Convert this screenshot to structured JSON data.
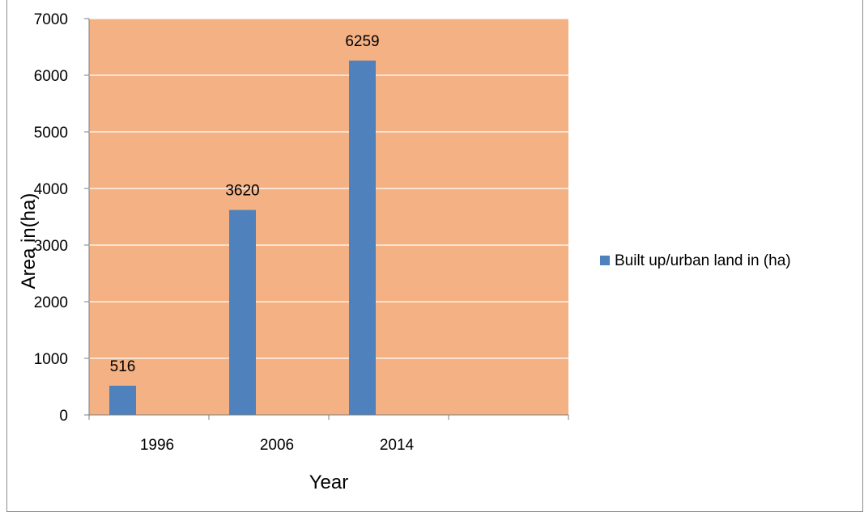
{
  "chart_data": {
    "type": "bar",
    "categories": [
      "1996",
      "2006",
      "2014",
      ""
    ],
    "series": [
      {
        "name": "Built up/urban land in (ha)",
        "values": [
          516,
          3620,
          6259,
          null
        ]
      }
    ],
    "data_labels": [
      "516",
      "3620",
      "6259"
    ],
    "xlabel": "Year",
    "ylabel": "Area in(ha)",
    "ylim": [
      0,
      7000
    ],
    "yticks": [
      0,
      1000,
      2000,
      3000,
      4000,
      5000,
      6000,
      7000
    ],
    "grid": true,
    "legend_position": "right",
    "colors": {
      "plot_background": "#f4b183",
      "bar": "#4f81bd",
      "gridline": "#ffffff"
    }
  }
}
